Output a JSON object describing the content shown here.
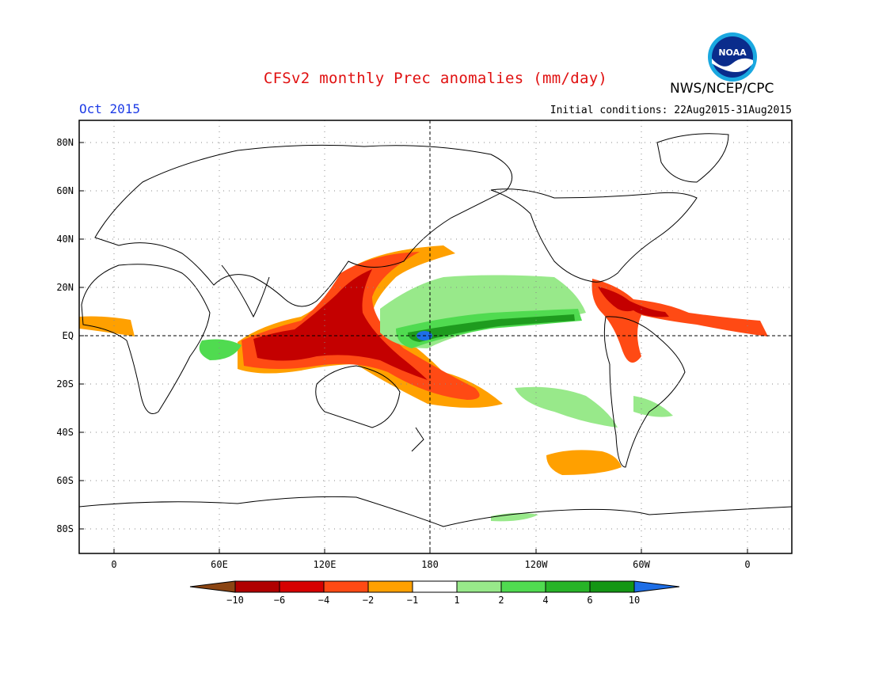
{
  "header": {
    "title": "CFSv2 monthly Prec anomalies (mm/day)",
    "agency": "NWS/NCEP/CPC",
    "month": "Oct 2015",
    "initial_conditions": "Initial conditions: 22Aug2015-31Aug2015",
    "logo_text": "NOAA"
  },
  "map": {
    "lat_labels": [
      "80N",
      "60N",
      "40N",
      "20N",
      "EQ",
      "20S",
      "40S",
      "60S",
      "80S"
    ],
    "lon_labels": [
      "0",
      "60E",
      "120E",
      "180",
      "120W",
      "60W",
      "0"
    ]
  },
  "colorbar": {
    "labels": [
      "-10",
      "-6",
      "-4",
      "-2",
      "-1",
      "1",
      "2",
      "4",
      "6",
      "10"
    ],
    "colors": [
      "#8b4513",
      "#b00000",
      "#d60000",
      "#ff4a14",
      "#ffa000",
      "#ffffff",
      "#98e98a",
      "#50db50",
      "#28b428",
      "#149614",
      "#1e6ee6"
    ]
  },
  "colors": {
    "title": "#e01010",
    "month": "#1e3ce6",
    "coast": "#000000",
    "dry_strong": "#c40000",
    "dry_mid": "#ff4a14",
    "dry_weak": "#ffa000",
    "wet_weak": "#98e98a",
    "wet_mid": "#50db50",
    "wet_strong": "#1e9b1e",
    "wet_extreme": "#1e6ee6"
  }
}
